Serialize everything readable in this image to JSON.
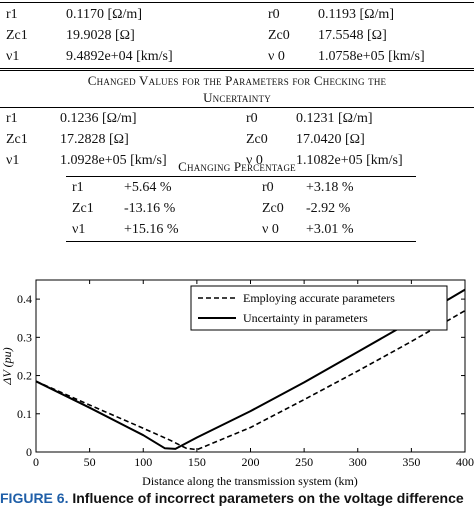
{
  "table_top": {
    "rows": [
      {
        "p1": "r1",
        "v1": "0.1170 [Ω/m]",
        "p2": "r0",
        "v2": "0.1193 [Ω/m]"
      },
      {
        "p1": "Zc1",
        "v1": "19.9028 [Ω]",
        "p2": "Zc0",
        "v2": "17.5548 [Ω]"
      },
      {
        "p1": "ν1",
        "v1": "9.4892e+04 [km/s]",
        "p2": "ν 0",
        "v2": "1.0758e+05 [km/s]"
      }
    ]
  },
  "section_changed": {
    "title_line1": "Changed Values for the Parameters for Checking the",
    "title_line2": "Uncertainty",
    "rows": [
      {
        "p1": "r1",
        "v1": "0.1236 [Ω/m]",
        "p2": "r0",
        "v2": "0.1231 [Ω/m]"
      },
      {
        "p1": "Zc1",
        "v1": "17.2828 [Ω]",
        "p2": "Zc0",
        "v2": "17.0420 [Ω]"
      },
      {
        "p1": "ν1",
        "v1": "1.0928e+05 [km/s]",
        "p2": "ν 0",
        "v2": "1.1082e+05 [km/s]"
      }
    ]
  },
  "section_percentage": {
    "title": "Changing Percentage",
    "rows": [
      {
        "p1": "r1",
        "v1": "+5.64 %",
        "p2": "r0",
        "v2": "+3.18 %"
      },
      {
        "p1": "Zc1",
        "v1": "-13.16 %",
        "p2": "Zc0",
        "v2": "-2.92 %"
      },
      {
        "p1": "ν1",
        "v1": "+15.16 %",
        "p2": "ν 0",
        "v2": "+3.01 %"
      }
    ]
  },
  "chart_data": {
    "type": "line",
    "xlabel": "Distance along the transmission system (km)",
    "ylabel": "ΔV (pu)",
    "xlim": [
      0,
      400
    ],
    "ylim": [
      0,
      0.45
    ],
    "x_ticks": [
      "0",
      "50",
      "100",
      "150",
      "200",
      "250",
      "300",
      "350",
      "400"
    ],
    "y_ticks": [
      "0",
      "0.1",
      "0.2",
      "0.3",
      "0.4"
    ],
    "legend_position": "top-right",
    "series": [
      {
        "name": "Employing accurate parameters",
        "style": "dashed",
        "x": [
          0,
          50,
          100,
          125,
          140,
          150,
          200,
          250,
          300,
          350,
          400
        ],
        "y": [
          0.185,
          0.123,
          0.062,
          0.031,
          0.01,
          0.006,
          0.064,
          0.137,
          0.212,
          0.289,
          0.37
        ]
      },
      {
        "name": "Uncertainty in parameters",
        "style": "solid",
        "x": [
          0,
          50,
          100,
          120,
          130,
          150,
          200,
          250,
          300,
          350,
          400
        ],
        "y": [
          0.185,
          0.116,
          0.044,
          0.01,
          0.008,
          0.038,
          0.107,
          0.182,
          0.262,
          0.342,
          0.425
        ]
      }
    ]
  },
  "figure_caption": {
    "number": "FIGURE 6.",
    "text": "Influence of incorrect parameters on the voltage difference"
  }
}
